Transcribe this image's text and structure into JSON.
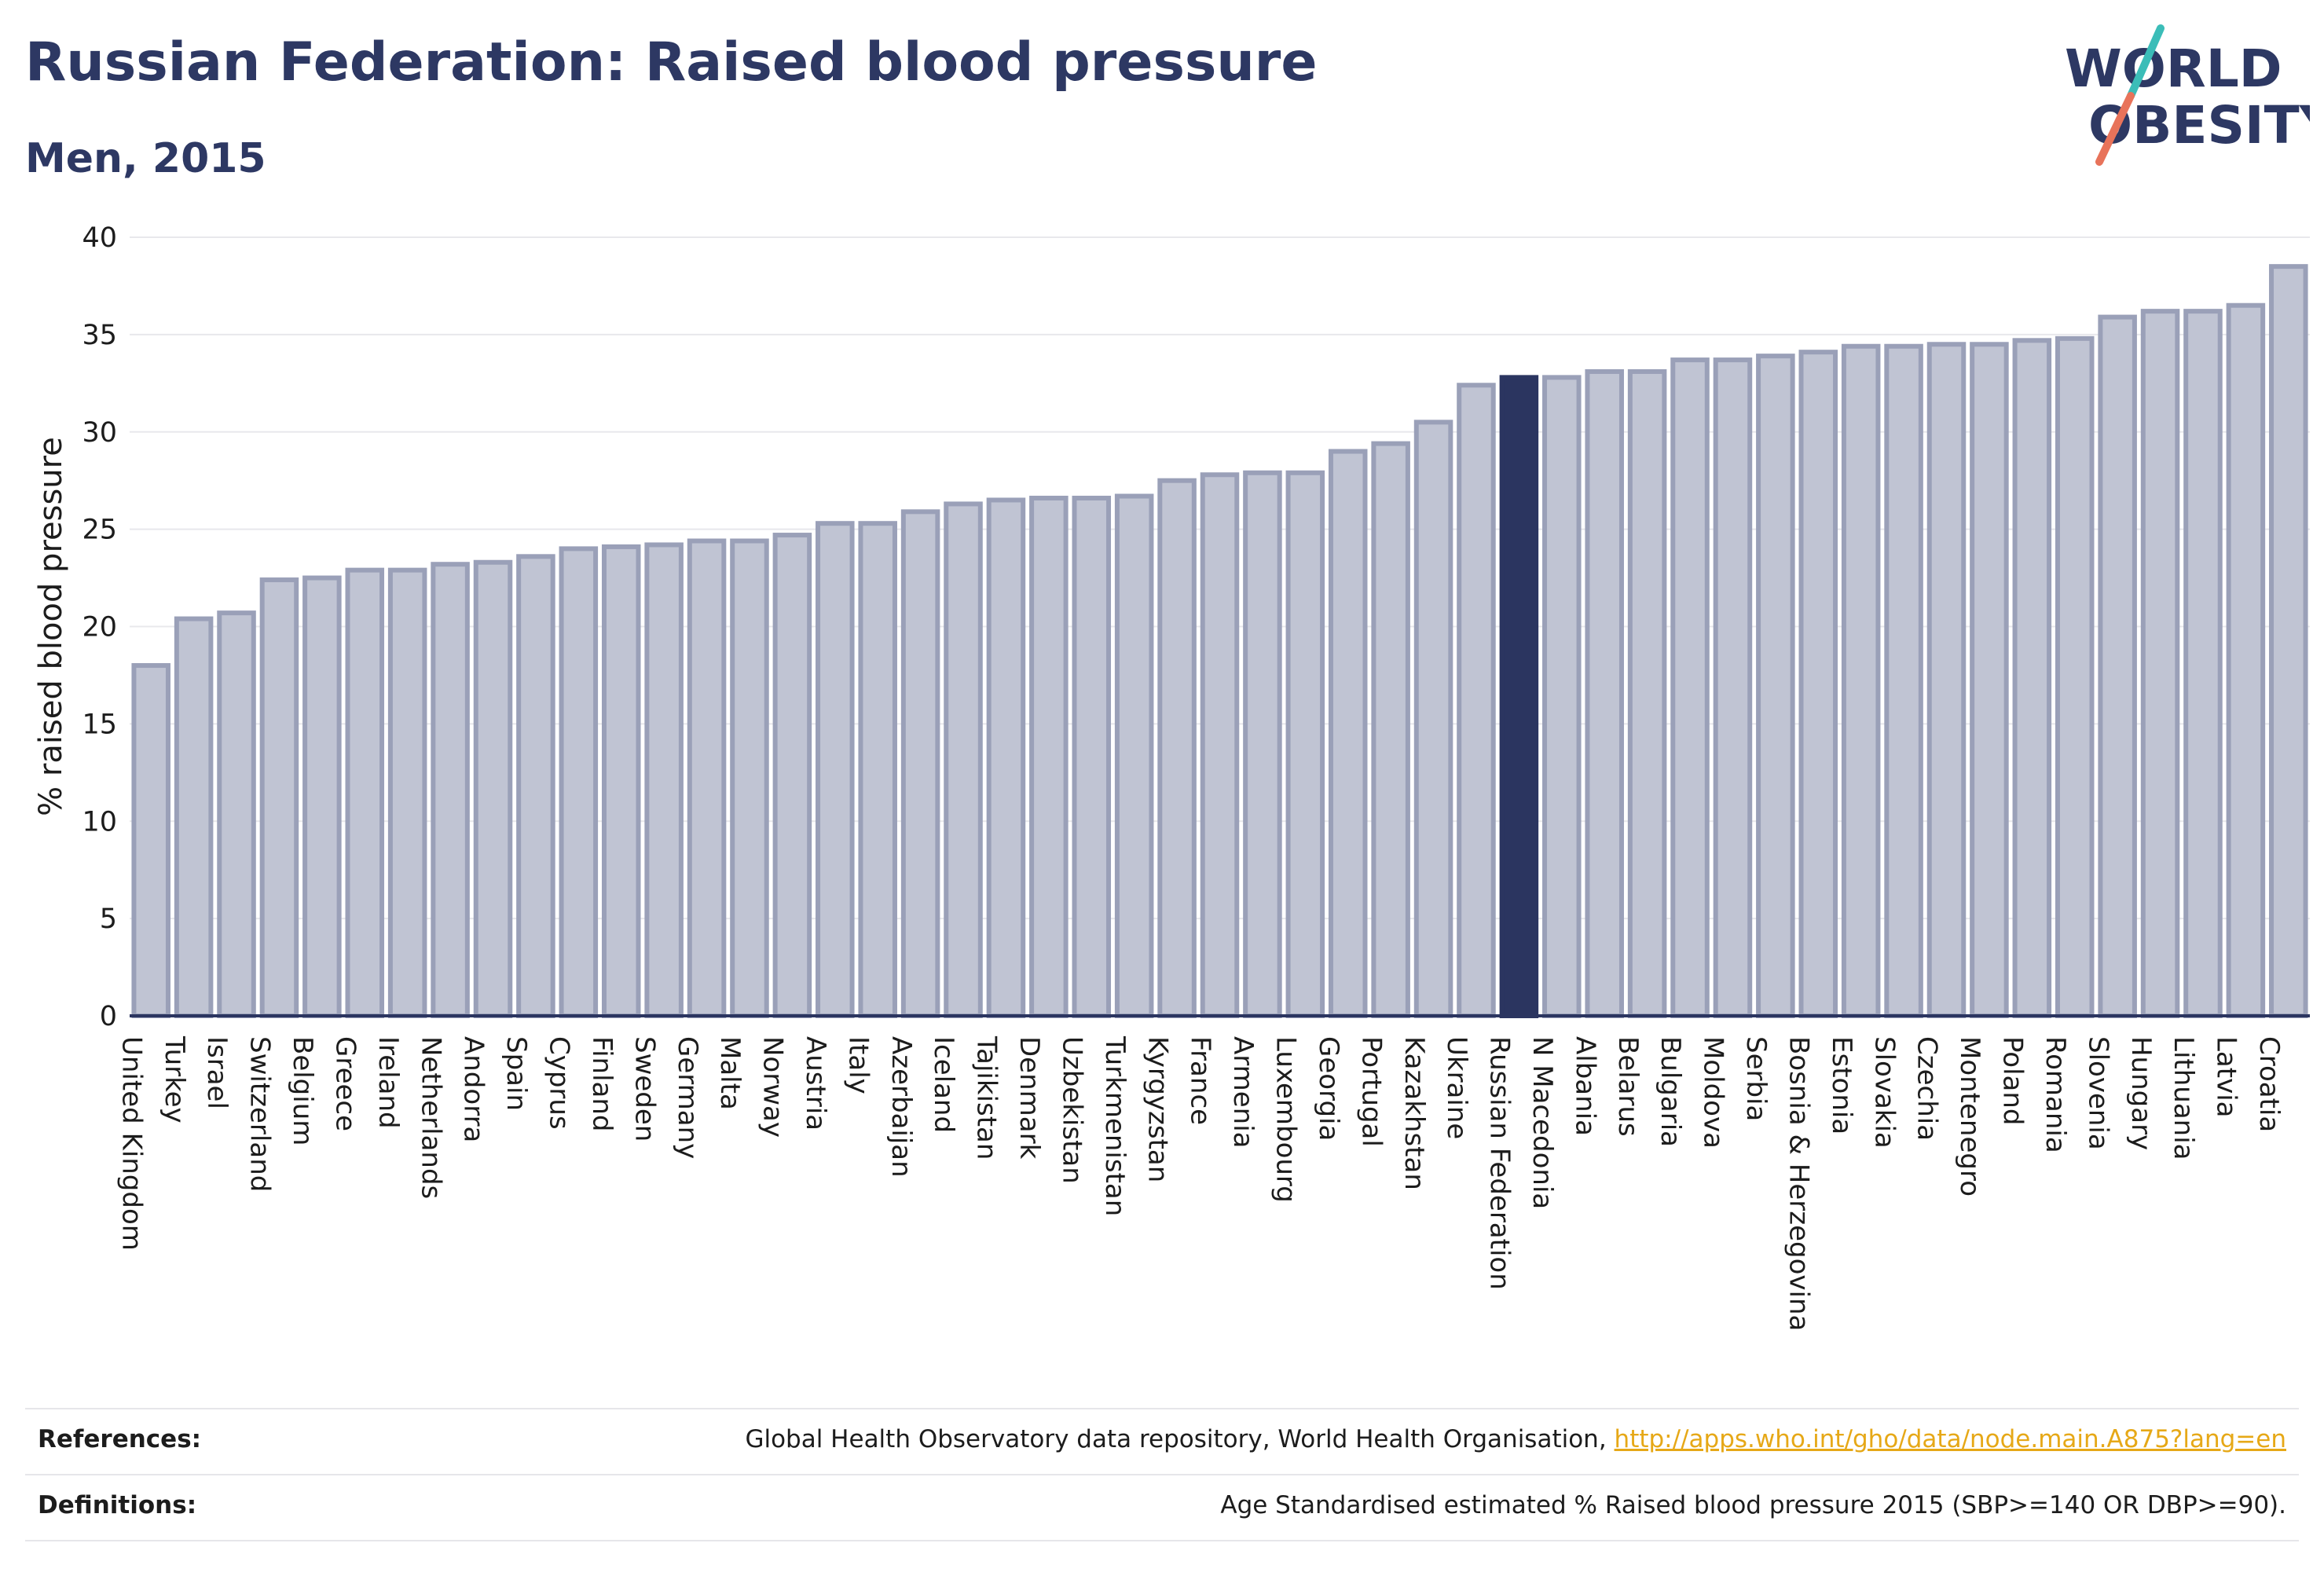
{
  "header": {
    "title": "Russian Federation: Raised blood pressure",
    "subtitle": "Men, 2015"
  },
  "logo": {
    "line1": "WORLD",
    "line2": "OBESITY",
    "accent_teal": "#3bbdb8",
    "accent_coral": "#e8735a",
    "text_color": "#2d3863"
  },
  "footer": {
    "references_label": "References:",
    "references_text": "Global Health Observatory data repository, World Health Organisation, ",
    "references_link": "http://apps.who.int/gho/data/node.main.A875?lang=en",
    "definitions_label": "Definitions:",
    "definitions_text": "Age Standardised estimated % Raised blood pressure 2015 (SBP>=140 OR DBP>=90)."
  },
  "chart_data": {
    "type": "bar",
    "title": "Russian Federation: Raised blood pressure",
    "subtitle": "Men, 2015",
    "xlabel": "",
    "ylabel": "% raised blood pressure",
    "ylim": [
      0,
      40
    ],
    "yticks": [
      0,
      5,
      10,
      15,
      20,
      25,
      30,
      35,
      40
    ],
    "grid": true,
    "highlight": "Russian Federation",
    "colors": {
      "bar_fill": "#c0c4d3",
      "bar_stroke": "#9aa0b8",
      "highlight_fill": "#2b3560",
      "grid": "#e8e8ec",
      "axis": "#2b3560"
    },
    "categories": [
      "United Kingdom",
      "Turkey",
      "Israel",
      "Switzerland",
      "Belgium",
      "Greece",
      "Ireland",
      "Netherlands",
      "Andorra",
      "Spain",
      "Cyprus",
      "Finland",
      "Sweden",
      "Germany",
      "Malta",
      "Norway",
      "Austria",
      "Italy",
      "Azerbaijan",
      "Iceland",
      "Tajikistan",
      "Denmark",
      "Uzbekistan",
      "Turkmenistan",
      "Kyrgyzstan",
      "France",
      "Armenia",
      "Luxembourg",
      "Georgia",
      "Portugal",
      "Kazakhstan",
      "Ukraine",
      "Russian Federation",
      "N Macedonia",
      "Albania",
      "Belarus",
      "Bulgaria",
      "Moldova",
      "Serbia",
      "Bosnia & Herzegovina",
      "Estonia",
      "Slovakia",
      "Czechia",
      "Montenegro",
      "Poland",
      "Romania",
      "Slovenia",
      "Hungary",
      "Lithuania",
      "Latvia",
      "Croatia"
    ],
    "values": [
      18.0,
      20.4,
      20.7,
      22.4,
      22.5,
      22.9,
      22.9,
      23.2,
      23.3,
      23.6,
      24.0,
      24.1,
      24.2,
      24.4,
      24.4,
      24.7,
      25.3,
      25.3,
      25.9,
      26.3,
      26.5,
      26.6,
      26.6,
      26.7,
      27.5,
      27.8,
      27.9,
      27.9,
      29.0,
      29.4,
      30.5,
      32.4,
      32.8,
      32.8,
      33.1,
      33.1,
      33.7,
      33.7,
      33.9,
      34.1,
      34.4,
      34.4,
      34.5,
      34.5,
      34.7,
      34.8,
      35.9,
      36.2,
      36.2,
      36.5,
      38.5
    ]
  }
}
